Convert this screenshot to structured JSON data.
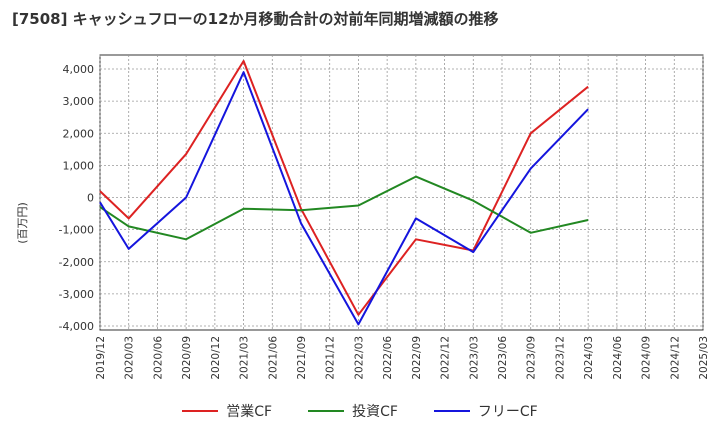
{
  "title": "[7508]  キャッシュフローの12か月移動合計の対前年同期増減額の推移",
  "unit_label": "(百万円)",
  "colors": {
    "operating": "#dd2222",
    "investing": "#228822",
    "free": "#1515dd",
    "grid": "#999999"
  },
  "chart_data": {
    "type": "line",
    "title": "[7508]  キャッシュフローの12か月移動合計の対前年同期増減額の推移",
    "ylabel": "(百万円)",
    "ylim": [
      -4000,
      4000
    ],
    "yticks": [
      4000,
      3000,
      2000,
      1000,
      0,
      -1000,
      -2000,
      -3000,
      -4000
    ],
    "ytick_labels": [
      "4,000",
      "3,000",
      "2,000",
      "1,000",
      "0",
      "-1,000",
      "-2,000",
      "-3,000",
      "-4,000"
    ],
    "x": [
      "2019/12",
      "2020/03",
      "2020/06",
      "2020/09",
      "2020/12",
      "2021/03",
      "2021/06",
      "2021/09",
      "2021/12",
      "2022/03",
      "2022/06",
      "2022/09",
      "2022/12",
      "2023/03",
      "2023/06",
      "2023/09",
      "2023/12",
      "2024/03",
      "2024/06",
      "2024/09",
      "2024/12",
      "2025/03"
    ],
    "grid": true,
    "legend": "bottom",
    "series": [
      {
        "name": "営業CF",
        "color": "#dd2222",
        "points": [
          [
            "2019/12",
            200
          ],
          [
            "2020/03",
            -650
          ],
          [
            "2020/09",
            1350
          ],
          [
            "2021/03",
            4250
          ],
          [
            "2021/09",
            -350
          ],
          [
            "2022/03",
            -3650
          ],
          [
            "2022/09",
            -1300
          ],
          [
            "2023/03",
            -1650
          ],
          [
            "2023/09",
            2000
          ],
          [
            "2024/03",
            3450
          ]
        ]
      },
      {
        "name": "投資CF",
        "color": "#228822",
        "points": [
          [
            "2019/12",
            -300
          ],
          [
            "2020/03",
            -900
          ],
          [
            "2020/09",
            -1300
          ],
          [
            "2021/03",
            -350
          ],
          [
            "2021/09",
            -400
          ],
          [
            "2022/03",
            -250
          ],
          [
            "2022/09",
            650
          ],
          [
            "2023/03",
            -100
          ],
          [
            "2023/09",
            -1100
          ],
          [
            "2024/03",
            -700
          ]
        ]
      },
      {
        "name": "フリーCF",
        "color": "#1515dd",
        "points": [
          [
            "2019/12",
            -150
          ],
          [
            "2020/03",
            -1600
          ],
          [
            "2020/09",
            0
          ],
          [
            "2021/03",
            3900
          ],
          [
            "2021/09",
            -800
          ],
          [
            "2022/03",
            -3950
          ],
          [
            "2022/09",
            -650
          ],
          [
            "2023/03",
            -1700
          ],
          [
            "2023/09",
            900
          ],
          [
            "2024/03",
            2750
          ]
        ]
      }
    ]
  }
}
